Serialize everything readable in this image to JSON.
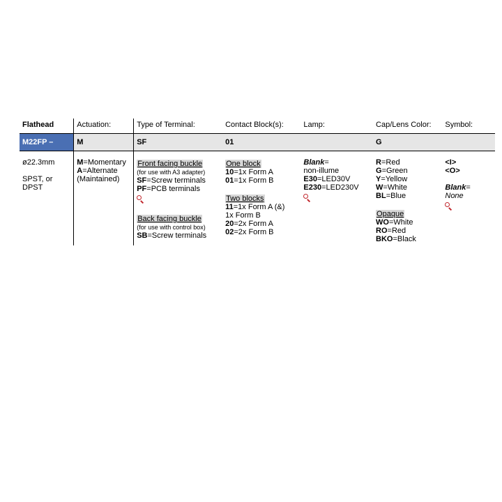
{
  "headers": [
    "Flathead",
    "Actuation:",
    "Type of Terminal:",
    "Contact Block(s):",
    "Lamp:",
    "Cap/Lens Color:",
    "Symbol:"
  ],
  "selected": [
    "M22FP –",
    "M",
    "SF",
    "01",
    "",
    "G",
    ""
  ],
  "col0": {
    "line1": "ø22.3mm",
    "line2": "SPST, or DPST"
  },
  "actuation": {
    "m": {
      "code": "M",
      "label": "=Momentary"
    },
    "a": {
      "code": "A",
      "label": "=Alternate"
    },
    "note": "(Maintained)"
  },
  "terminal": {
    "sect1": "Front facing buckle",
    "note1": "(for use with A3 adapter)",
    "sf": {
      "code": "SF",
      "label": "=Screw terminals"
    },
    "pf": {
      "code": "PF",
      "label": "=PCB terminals"
    },
    "sect2": "Back facing buckle",
    "note2": "(for use with control box)",
    "sb": {
      "code": "SB",
      "label": "=Screw terminals"
    }
  },
  "contact": {
    "sect1": "One block",
    "r10": {
      "code": "10",
      "label": "=1x Form A"
    },
    "r01": {
      "code": "01",
      "label": "=1x Form B"
    },
    "sect2": "Two blocks",
    "r11a": {
      "code": "11",
      "label": "=1x Form A (&)"
    },
    "r11b": "1x Form B",
    "r20": {
      "code": "20",
      "label": "=2x Form A"
    },
    "r02": {
      "code": "02",
      "label": "=2x Form B"
    }
  },
  "lamp": {
    "blank": {
      "code": "Blank",
      "label": "="
    },
    "blank2": "non-illume",
    "e30": {
      "code": "E30",
      "label": "=LED30V"
    },
    "e230": {
      "code": "E230",
      "label": "=LED230V"
    }
  },
  "color": {
    "r": {
      "code": "R",
      "label": "=Red"
    },
    "g": {
      "code": "G",
      "label": "=Green"
    },
    "y": {
      "code": "Y",
      "label": "=Yellow"
    },
    "w": {
      "code": "W",
      "label": "=White"
    },
    "bl": {
      "code": "BL",
      "label": "=Blue"
    },
    "sect": "Opaque",
    "wo": {
      "code": "WO",
      "label": "=White"
    },
    "ro": {
      "code": "RO",
      "label": "=Red"
    },
    "bko": {
      "code": "BKO",
      "label": "=Black"
    }
  },
  "symbol": {
    "i": "<I>",
    "o": "<O>",
    "blank": {
      "code": "Blank",
      "label": "="
    },
    "blank2": "None"
  },
  "colors": {
    "accent": "#4a6fb3",
    "grey": "#e6e6e6",
    "secthdr": "#d7d7d7",
    "mag": "#c1272d"
  }
}
